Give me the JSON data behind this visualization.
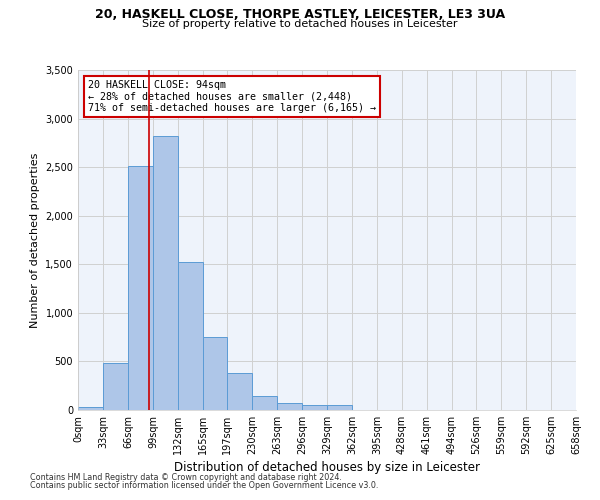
{
  "title1": "20, HASKELL CLOSE, THORPE ASTLEY, LEICESTER, LE3 3UA",
  "title2": "Size of property relative to detached houses in Leicester",
  "xlabel": "Distribution of detached houses by size in Leicester",
  "ylabel": "Number of detached properties",
  "annotation_line1": "20 HASKELL CLOSE: 94sqm",
  "annotation_line2": "← 28% of detached houses are smaller (2,448)",
  "annotation_line3": "71% of semi-detached houses are larger (6,165) →",
  "property_size": 94,
  "bin_edges": [
    0,
    33,
    66,
    99,
    132,
    165,
    197,
    230,
    263,
    296,
    329,
    362,
    395,
    428,
    461,
    494,
    526,
    559,
    592,
    625,
    658
  ],
  "bar_values": [
    30,
    480,
    2510,
    2820,
    1520,
    750,
    385,
    140,
    70,
    50,
    50,
    0,
    0,
    0,
    0,
    0,
    0,
    0,
    0,
    0
  ],
  "bar_color": "#aec6e8",
  "bar_edge_color": "#5b9bd5",
  "vline_color": "#cc0000",
  "vline_x": 94,
  "ylim": [
    0,
    3500
  ],
  "yticks": [
    0,
    500,
    1000,
    1500,
    2000,
    2500,
    3000,
    3500
  ],
  "grid_color": "#d0d0d0",
  "background_color": "#eef3fb",
  "footnote1": "Contains HM Land Registry data © Crown copyright and database right 2024.",
  "footnote2": "Contains public sector information licensed under the Open Government Licence v3.0."
}
